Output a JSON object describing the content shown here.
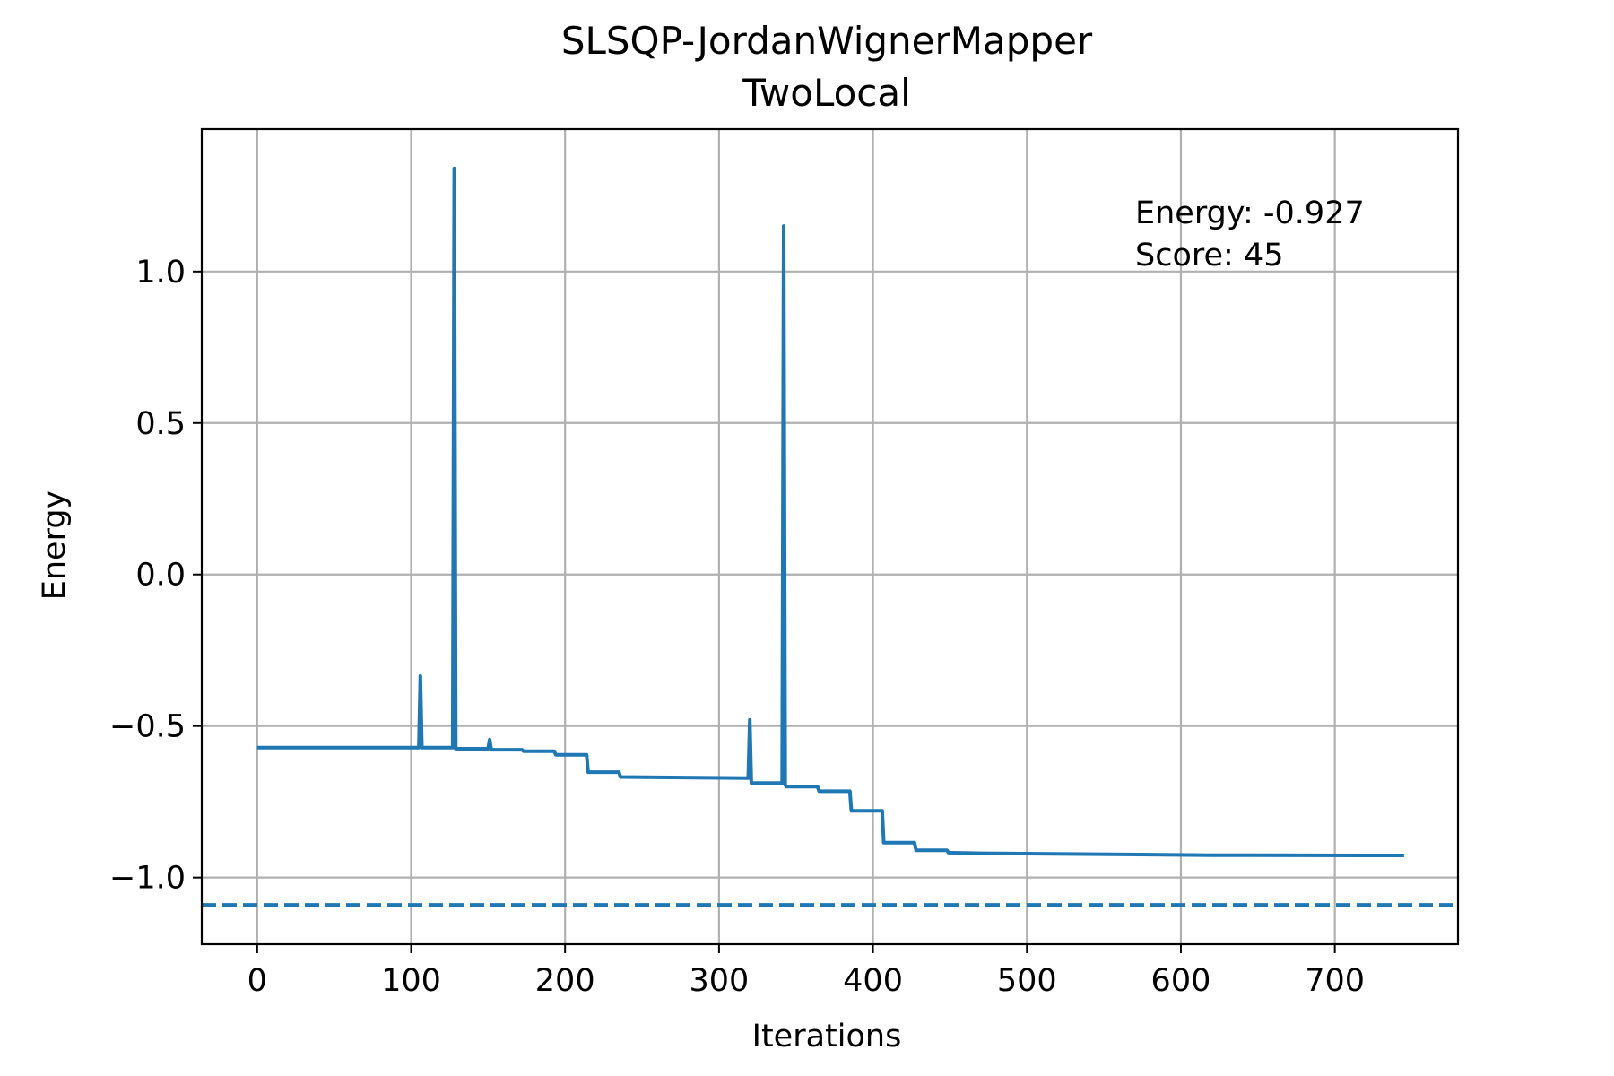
{
  "chart_data": {
    "type": "line",
    "title": [
      "SLSQP-JordanWignerMapper",
      "TwoLocal"
    ],
    "xlabel": "Iterations",
    "ylabel": "Energy",
    "xlim": [
      -36,
      780
    ],
    "ylim": [
      -1.22,
      1.47
    ],
    "grid": true,
    "xticks": [
      0,
      100,
      200,
      300,
      400,
      500,
      600,
      700
    ],
    "xtick_labels": [
      "0",
      "100",
      "200",
      "300",
      "400",
      "500",
      "600",
      "700"
    ],
    "yticks": [
      -1.0,
      -0.5,
      0.0,
      0.5,
      1.0
    ],
    "ytick_labels": [
      "−1.0",
      "−0.5",
      "0.0",
      "0.5",
      "1.0"
    ],
    "annotation": [
      "Energy: -0.927",
      "Score: 45"
    ],
    "series": [
      {
        "color": "#1f77b4",
        "style": "solid",
        "x": [
          0,
          105,
          106,
          107,
          127,
          128,
          129,
          130,
          150,
          151,
          152,
          172,
          173,
          193,
          194,
          214,
          215,
          235,
          236,
          319,
          320,
          321,
          341,
          342,
          343,
          344,
          364,
          365,
          385,
          386,
          406,
          407,
          427,
          428,
          448,
          449,
          470,
          620,
          745
        ],
        "y": [
          -0.571,
          -0.571,
          -0.335,
          -0.571,
          -0.571,
          1.34,
          -0.575,
          -0.575,
          -0.575,
          -0.545,
          -0.578,
          -0.578,
          -0.583,
          -0.583,
          -0.595,
          -0.595,
          -0.652,
          -0.652,
          -0.668,
          -0.672,
          -0.48,
          -0.688,
          -0.688,
          1.15,
          -0.695,
          -0.7,
          -0.7,
          -0.715,
          -0.715,
          -0.78,
          -0.78,
          -0.885,
          -0.885,
          -0.91,
          -0.91,
          -0.918,
          -0.92,
          -0.926,
          -0.927
        ]
      },
      {
        "color": "#1f77b4",
        "style": "dashed",
        "x": [
          -36,
          780
        ],
        "y": [
          -1.09,
          -1.09
        ]
      }
    ]
  }
}
